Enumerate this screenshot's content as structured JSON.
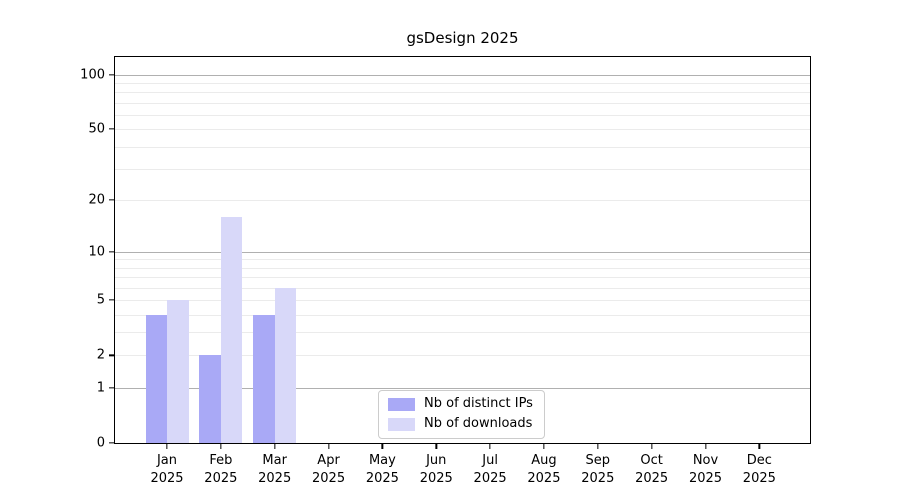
{
  "figure": {
    "title": "gsDesign 2025"
  },
  "chart_data": {
    "type": "bar",
    "title": "gsDesign 2025",
    "categories": [
      "Jan 2025",
      "Feb 2025",
      "Mar 2025",
      "Apr 2025",
      "May 2025",
      "Jun 2025",
      "Jul 2025",
      "Aug 2025",
      "Sep 2025",
      "Oct 2025",
      "Nov 2025",
      "Dec 2025"
    ],
    "series": [
      {
        "name": "Nb of distinct IPs",
        "color": "#a9a9f6",
        "values": [
          4,
          2,
          4,
          0,
          0,
          0,
          0,
          0,
          0,
          0,
          0,
          0
        ]
      },
      {
        "name": "Nb of downloads",
        "color": "#d8d8f9",
        "values": [
          5,
          16,
          6,
          0,
          0,
          0,
          0,
          0,
          0,
          0,
          0,
          0
        ]
      }
    ],
    "xlabel": "",
    "ylabel": "",
    "yscale": "log1p",
    "yticks": [
      0,
      1,
      2,
      5,
      10,
      20,
      50,
      100
    ],
    "ylim": [
      0,
      125
    ],
    "grid": {
      "major": [
        1,
        10,
        100
      ],
      "minor": [
        2,
        3,
        4,
        5,
        6,
        7,
        8,
        9,
        20,
        30,
        40,
        50,
        60,
        70,
        80,
        90
      ],
      "major_color": "#b0b0b0",
      "minor_color": "#ebebeb"
    },
    "legend_position": "lower center"
  }
}
